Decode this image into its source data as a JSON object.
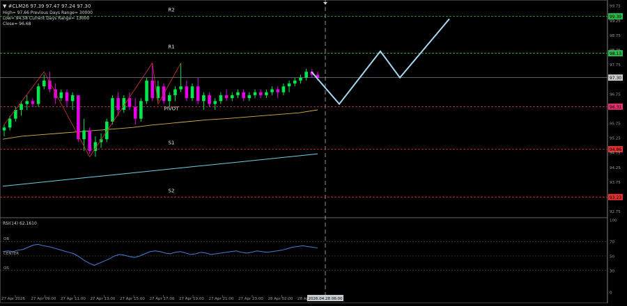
{
  "header": {
    "symbol_line": "▼ #CLM26 97.39 97.47 97.24 97.30",
    "info_lines": [
      "High= 97.66   Previous Days Range= 30000",
      "Low= 94.58   Current Days Range= 13000",
      "Close= 96.68"
    ]
  },
  "colors": {
    "background": "#000000",
    "bull": "#00e64d",
    "bear": "#e600e6",
    "ma_fast": "#d8b04a",
    "ma_slow": "#6ecfe6",
    "projection": "#a8d8f0",
    "pivot_line": "#e0306f",
    "resistance_line": "#2ab84a",
    "support_line": "#e03030",
    "last_price": "#8c9ca8",
    "rsi_line": "#4a7ed8"
  },
  "price_axis": {
    "ticks": [
      "91.75",
      "92.75",
      "93.75",
      "94.25",
      "94.75",
      "95.25",
      "95.75",
      "96.75",
      "97.75",
      "98.25",
      "98.75",
      "99.25",
      "99.75"
    ]
  },
  "levels": [
    {
      "name": "R2",
      "price": 99.39,
      "badge": "99.39",
      "badge_color": "#2ab84a",
      "line_color": "#2ab84a"
    },
    {
      "name": "R1",
      "price": 98.13,
      "badge": "98.13",
      "badge_color": "#2ab84a",
      "line_color": "#2ab84a"
    },
    {
      "name": "PIVOT",
      "price": 96.31,
      "badge": "96.31",
      "badge_color": "#e0306f",
      "line_color": "#e0306f"
    },
    {
      "name": "S1",
      "price": 94.86,
      "badge": "94.86",
      "badge_color": "#e03030",
      "line_color": "#e03030"
    },
    {
      "name": "S2",
      "price": 93.23,
      "badge": "93.23",
      "badge_color": "#e03030",
      "line_color": "#e03030"
    }
  ],
  "last_price_badge": "97.30",
  "time_axis": {
    "labels": [
      "27 Apr 2026",
      "27 Apr 09:00",
      "27 Apr 11:00",
      "27 Apr 13:00",
      "27 Apr 15:00",
      "27 Apr 17:00",
      "27 Apr 19:00",
      "27 Apr 21:00",
      "27 Apr 23:00",
      "28 Apr 02:00",
      "28 Ap"
    ],
    "cursor_label": "2026.04.28 06:00"
  },
  "rsi": {
    "title": "RSI(14) 62.1610",
    "ticks": [
      "100",
      "70",
      "50",
      "30",
      "0"
    ],
    "level_labels": [
      "OB",
      "CENTER",
      "OS"
    ],
    "values": [
      56,
      57,
      56,
      58,
      59,
      62,
      65,
      66,
      64,
      63,
      61,
      59,
      57,
      55,
      53,
      49,
      44,
      40,
      37,
      40,
      43,
      46,
      50,
      52,
      51,
      49,
      48,
      50,
      53,
      56,
      57,
      56,
      54,
      53,
      55,
      56,
      54,
      52,
      53,
      55,
      54,
      52,
      53,
      54,
      55,
      56,
      57,
      55,
      54,
      55,
      57,
      56,
      55,
      56,
      57,
      58,
      60,
      62,
      63,
      64,
      63,
      62,
      61
    ]
  },
  "chart_data": {
    "type": "candlestick",
    "series": [
      {
        "name": "#CLM26",
        "ohlc": [
          [
            95.5,
            95.7,
            95.3,
            95.6
          ],
          [
            95.6,
            96.0,
            95.5,
            95.9
          ],
          [
            95.9,
            96.3,
            95.8,
            96.2
          ],
          [
            96.2,
            96.5,
            96.0,
            96.4
          ],
          [
            96.4,
            96.7,
            96.2,
            96.5
          ],
          [
            96.5,
            96.6,
            96.3,
            96.4
          ],
          [
            96.4,
            97.1,
            96.3,
            97.0
          ],
          [
            97.0,
            97.4,
            96.9,
            97.2
          ],
          [
            97.2,
            97.5,
            96.8,
            96.9
          ],
          [
            96.9,
            97.1,
            96.4,
            96.6
          ],
          [
            96.6,
            96.9,
            96.5,
            96.8
          ],
          [
            96.8,
            96.9,
            96.3,
            96.5
          ],
          [
            96.5,
            96.8,
            96.2,
            96.7
          ],
          [
            96.7,
            96.7,
            95.1,
            95.2
          ],
          [
            95.2,
            95.9,
            94.8,
            95.5
          ],
          [
            95.5,
            95.6,
            94.7,
            94.8
          ],
          [
            94.8,
            95.3,
            94.6,
            95.1
          ],
          [
            95.1,
            95.4,
            94.9,
            95.2
          ],
          [
            95.2,
            95.9,
            95.1,
            95.8
          ],
          [
            95.8,
            96.7,
            95.7,
            96.6
          ],
          [
            96.6,
            96.8,
            96.0,
            96.2
          ],
          [
            96.2,
            96.7,
            96.1,
            96.6
          ],
          [
            96.6,
            96.8,
            96.2,
            96.3
          ],
          [
            96.3,
            96.6,
            95.7,
            95.9
          ],
          [
            95.9,
            96.6,
            95.8,
            96.5
          ],
          [
            96.5,
            97.3,
            96.4,
            97.2
          ],
          [
            97.2,
            97.8,
            96.5,
            96.6
          ],
          [
            96.6,
            97.2,
            96.5,
            97.0
          ],
          [
            97.0,
            97.1,
            96.4,
            96.5
          ],
          [
            96.5,
            96.8,
            96.3,
            96.7
          ],
          [
            96.7,
            97.0,
            96.5,
            96.9
          ],
          [
            96.9,
            97.8,
            96.8,
            97.0
          ],
          [
            97.0,
            97.2,
            96.5,
            96.6
          ],
          [
            96.6,
            97.1,
            96.5,
            97.0
          ],
          [
            97.0,
            97.3,
            96.4,
            96.5
          ],
          [
            96.5,
            96.8,
            96.2,
            96.7
          ],
          [
            96.7,
            96.8,
            96.3,
            96.4
          ],
          [
            96.4,
            96.6,
            96.2,
            96.5
          ],
          [
            96.5,
            96.8,
            96.4,
            96.7
          ],
          [
            96.7,
            96.9,
            96.5,
            96.6
          ],
          [
            96.6,
            96.8,
            96.5,
            96.7
          ],
          [
            96.7,
            96.9,
            96.6,
            96.8
          ],
          [
            96.8,
            96.9,
            96.5,
            96.6
          ],
          [
            96.6,
            96.8,
            96.5,
            96.7
          ],
          [
            96.7,
            96.9,
            96.6,
            96.8
          ],
          [
            96.8,
            96.9,
            96.6,
            96.7
          ],
          [
            96.7,
            96.9,
            96.6,
            96.8
          ],
          [
            96.8,
            97.0,
            96.7,
            96.9
          ],
          [
            96.9,
            97.0,
            96.6,
            96.8
          ],
          [
            96.8,
            97.1,
            96.7,
            97.0
          ],
          [
            97.0,
            97.2,
            96.8,
            97.1
          ],
          [
            97.1,
            97.3,
            97.0,
            97.2
          ],
          [
            97.2,
            97.4,
            97.1,
            97.3
          ],
          [
            97.3,
            97.6,
            97.2,
            97.5
          ],
          [
            97.5,
            97.6,
            97.3,
            97.4
          ],
          [
            97.4,
            97.5,
            97.2,
            97.3
          ]
        ]
      },
      {
        "name": "MA fast",
        "values": [
          95.2,
          95.3,
          95.35,
          95.4,
          95.45,
          95.5,
          95.55,
          95.6,
          95.68,
          95.74,
          95.8,
          95.86,
          95.9,
          95.95,
          96.0,
          96.05,
          96.1,
          96.2
        ]
      },
      {
        "name": "MA slow",
        "values": [
          93.6,
          93.7,
          93.8,
          93.9,
          94.0,
          94.1,
          94.2,
          94.3,
          94.4,
          94.5,
          94.6,
          94.7
        ]
      },
      {
        "name": "projection",
        "values": [
          97.5,
          96.4,
          98.2,
          97.3,
          99.3
        ]
      }
    ],
    "price_range": [
      92.55,
      99.85
    ]
  }
}
